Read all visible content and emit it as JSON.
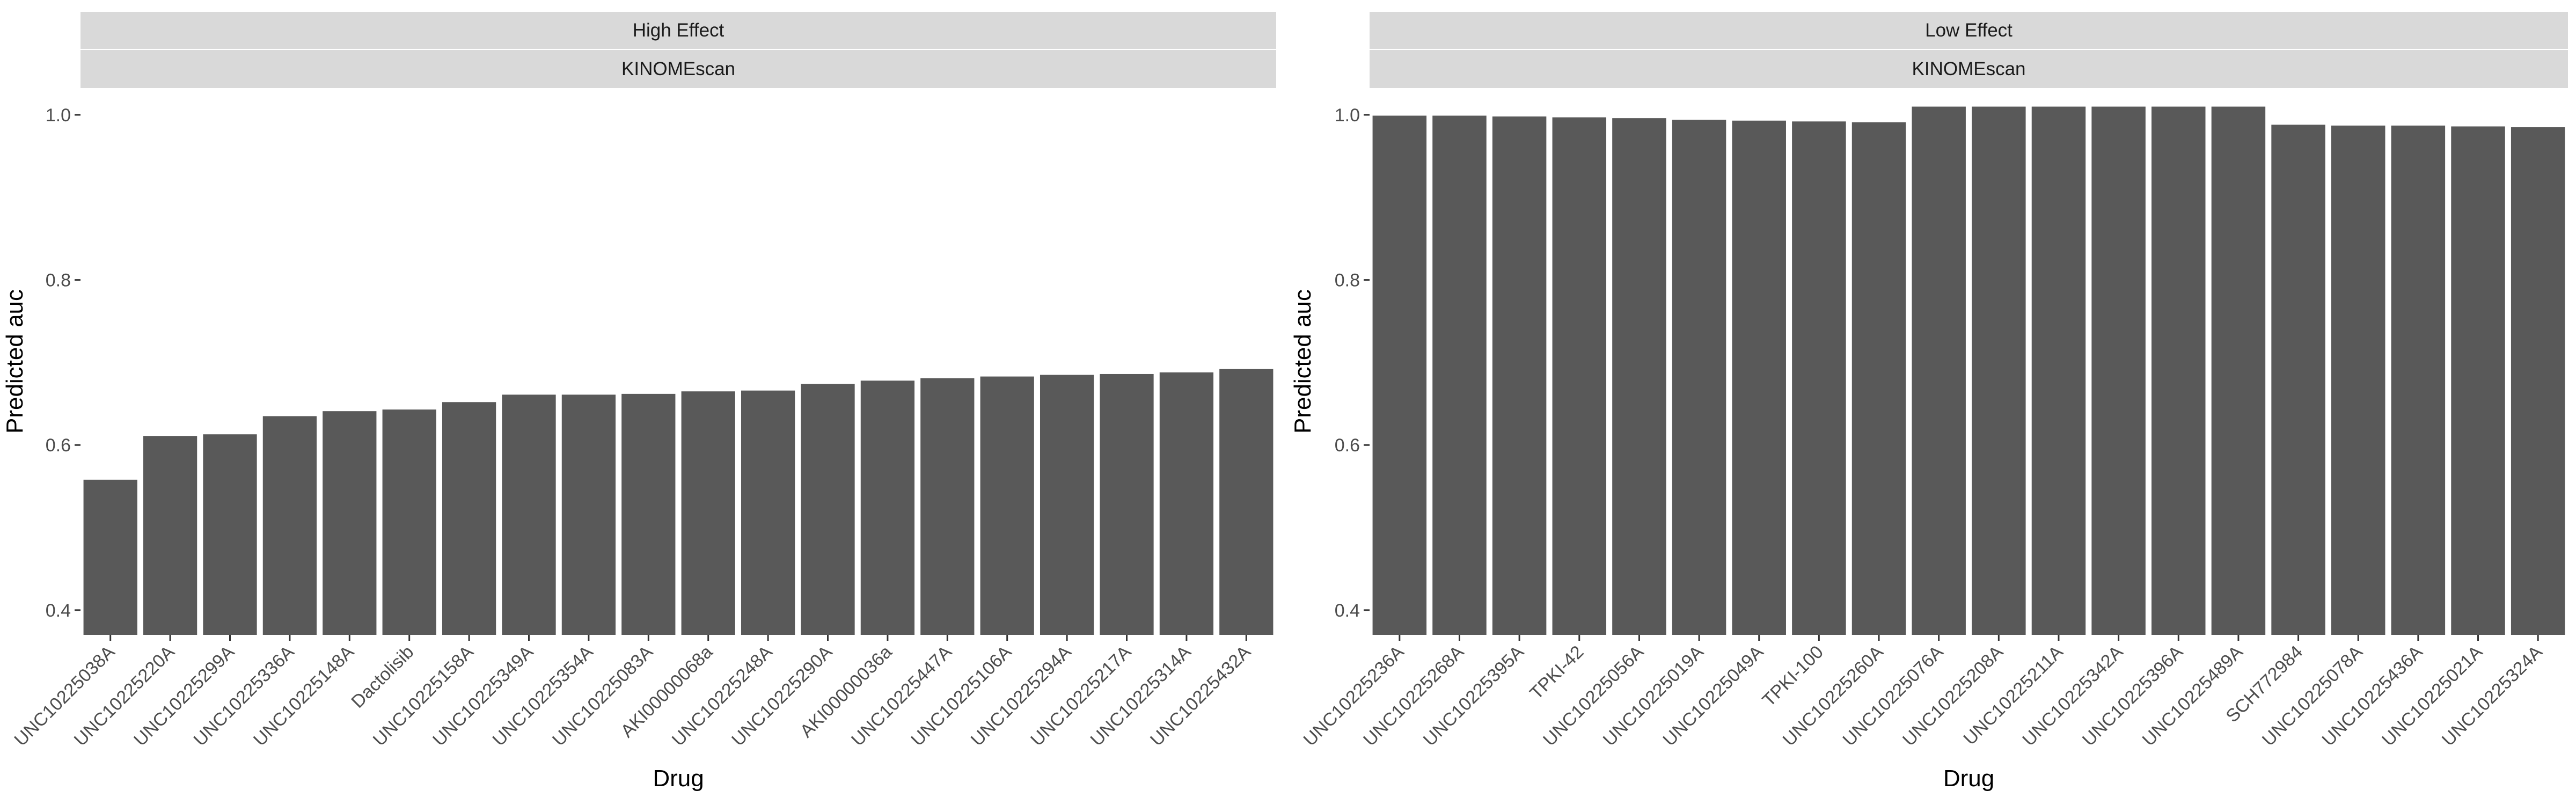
{
  "colors": {
    "bar": "#595959",
    "strip": "#d9d9d9",
    "tick": "#333333",
    "panel_bg": "#ffffff"
  },
  "chart_data": [
    {
      "type": "bar",
      "facet_top": "High Effect",
      "facet_sub": "KINOMEscan",
      "xlabel": "Drug",
      "ylabel": "Predicted auc",
      "ylim": [
        0.37,
        1.0
      ],
      "yticks": [
        "0.4",
        "0.6",
        "0.8",
        "1.0"
      ],
      "ytick_values": [
        0.4,
        0.6,
        0.8,
        1.0
      ],
      "grid": false,
      "categories": [
        "UNC10225038A",
        "UNC10225220A",
        "UNC10225299A",
        "UNC10225336A",
        "UNC10225148A",
        "Dactolisib",
        "UNC10225158A",
        "UNC10225349A",
        "UNC10225354A",
        "UNC10225083A",
        "AKI00000068a",
        "UNC10225248A",
        "UNC10225290A",
        "AKI00000036a",
        "UNC10225447A",
        "UNC10225106A",
        "UNC10225294A",
        "UNC10225217A",
        "UNC10225314A",
        "UNC10225432A"
      ],
      "values": [
        0.558,
        0.611,
        0.613,
        0.635,
        0.641,
        0.643,
        0.652,
        0.661,
        0.661,
        0.662,
        0.665,
        0.666,
        0.674,
        0.678,
        0.681,
        0.683,
        0.685,
        0.686,
        0.688,
        0.692
      ]
    },
    {
      "type": "bar",
      "facet_top": "Low Effect",
      "facet_sub": "KINOMEscan",
      "xlabel": "Drug",
      "ylabel": "Predicted auc",
      "ylim": [
        0.37,
        1.0
      ],
      "yticks": [
        "0.4",
        "0.6",
        "0.8",
        "1.0"
      ],
      "ytick_values": [
        0.4,
        0.6,
        0.8,
        1.0
      ],
      "grid": false,
      "categories": [
        "UNC10225236A",
        "UNC10225268A",
        "UNC10225395A",
        "TPKI-42",
        "UNC10225056A",
        "UNC10225019A",
        "UNC10225049A",
        "TPKI-100",
        "UNC10225260A",
        "UNC10225076A",
        "UNC10225208A",
        "UNC10225211A",
        "UNC10225342A",
        "UNC10225396A",
        "UNC10225489A",
        "SCH772984",
        "UNC10225078A",
        "UNC10225436A",
        "UNC10225021A",
        "UNC10225324A"
      ],
      "values": [
        0.999,
        0.999,
        0.998,
        0.997,
        0.996,
        0.994,
        0.993,
        0.992,
        0.991,
        1.01,
        1.01,
        1.01,
        1.01,
        1.01,
        1.01,
        0.988,
        0.987,
        0.987,
        0.986,
        0.985
      ]
    }
  ]
}
